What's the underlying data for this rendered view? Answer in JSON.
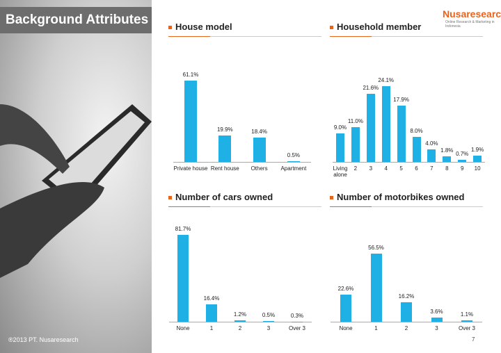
{
  "page": {
    "title": "Background Attributes",
    "logo": "Nusaresearch",
    "tagline": "Online Research & Marketing in Indonesia",
    "copyright": "®2013 PT. Nusaresearch",
    "page_number": "7"
  },
  "chart_data": [
    {
      "type": "bar",
      "title": "House model",
      "color": "#1fb1e6",
      "categories": [
        "Private house",
        "Rent house",
        "Others",
        "Apartment"
      ],
      "values": [
        61.1,
        19.9,
        18.4,
        0.5
      ],
      "value_labels": [
        "61.1%",
        "19.9%",
        "18.4%",
        "0.5%"
      ]
    },
    {
      "type": "bar",
      "title": "Household member",
      "color": "#1fb1e6",
      "categories": [
        "Living alone",
        "2",
        "3",
        "4",
        "5",
        "6",
        "7",
        "8",
        "9",
        "10"
      ],
      "values": [
        9.0,
        11.0,
        21.6,
        24.1,
        17.9,
        8.0,
        4.0,
        1.8,
        0.7,
        1.9
      ],
      "value_labels": [
        "9.0%",
        "11.0%",
        "21.6%",
        "24.1%",
        "17.9%",
        "8.0%",
        "4.0%",
        "1.8%",
        "0.7%",
        "1.9%"
      ]
    },
    {
      "type": "bar",
      "title": "Number of cars owned",
      "color": "#1fb1e6",
      "categories": [
        "None",
        "1",
        "2",
        "3",
        "Over 3"
      ],
      "values": [
        81.7,
        16.4,
        1.2,
        0.5,
        0.3
      ],
      "value_labels": [
        "81.7%",
        "16.4%",
        "1.2%",
        "0.5%",
        "0.3%"
      ]
    },
    {
      "type": "bar",
      "title": "Number of motorbikes owned",
      "color": "#1fb1e6",
      "categories": [
        "None",
        "1",
        "2",
        "3",
        "Over 3"
      ],
      "values": [
        22.6,
        56.5,
        16.2,
        3.6,
        1.1
      ],
      "value_labels": [
        "22.6%",
        "56.5%",
        "16.2%",
        "3.6%",
        "1.1%"
      ]
    }
  ]
}
